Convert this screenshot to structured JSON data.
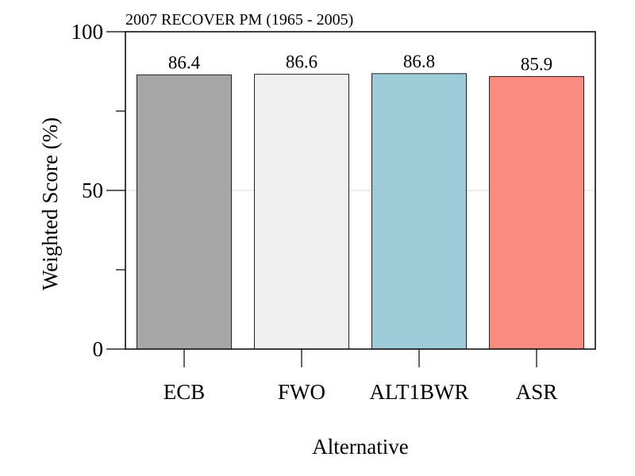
{
  "chart_data": {
    "type": "bar",
    "title": "2007 RECOVER PM (1965 - 2005)",
    "xlabel": "Alternative",
    "ylabel": "Weighted Score (%)",
    "categories": [
      "ECB",
      "FWO",
      "ALT1BWR",
      "ASR"
    ],
    "values": [
      86.4,
      86.6,
      86.8,
      85.9
    ],
    "value_labels": [
      "86.4",
      "86.6",
      "86.8",
      "85.9"
    ],
    "colors": [
      "#a6a6a6",
      "#f0f0f0",
      "#9ecbd8",
      "#f98b7f"
    ],
    "ylim": [
      0,
      100
    ],
    "yticks_labeled": [
      "0",
      "50",
      "100"
    ],
    "yticks_values": [
      0,
      50,
      100
    ],
    "yticks_minor": [
      25,
      75
    ],
    "reference_line": 50,
    "grid": false,
    "legend": "none"
  }
}
